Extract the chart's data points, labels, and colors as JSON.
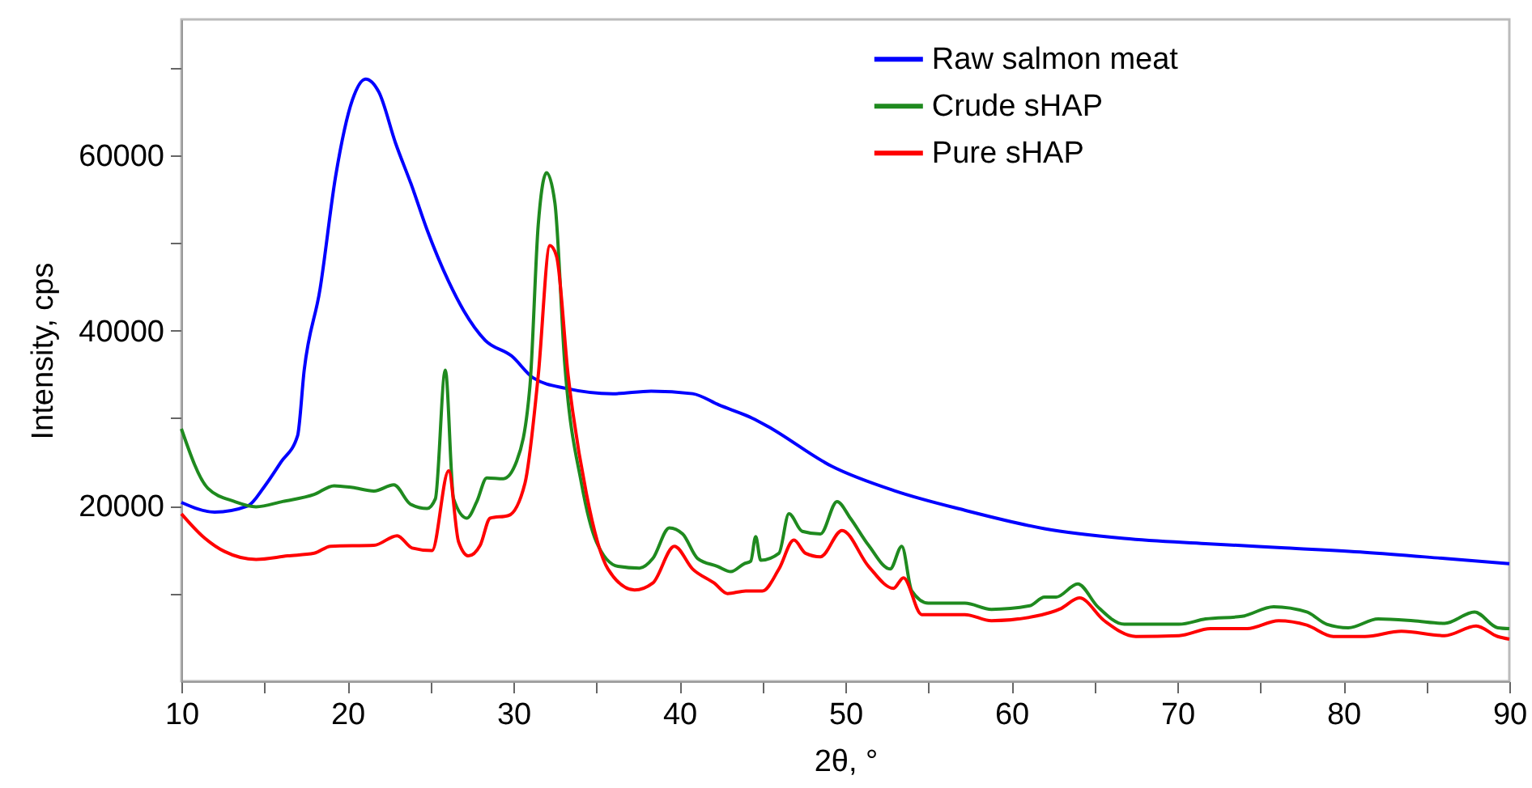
{
  "chart_data": {
    "type": "line",
    "xlabel": "2θ, °",
    "ylabel": "Intensity, cps",
    "xlim": [
      10,
      90
    ],
    "ylim": [
      0,
      75500
    ],
    "xticks": [
      10,
      {
        "value": 15,
        "label": null
      },
      20,
      {
        "value": 25,
        "label": null
      },
      30,
      {
        "value": 35,
        "label": null
      },
      40,
      {
        "value": 45,
        "label": null
      },
      50,
      {
        "value": 55,
        "label": null
      },
      60,
      {
        "value": 65,
        "label": null
      },
      70,
      {
        "value": 75,
        "label": null
      },
      80,
      {
        "value": 85,
        "label": null
      },
      90
    ],
    "yticks": [
      {
        "value": 10000,
        "label": null
      },
      20000,
      {
        "value": 30000,
        "label": null
      },
      40000,
      {
        "value": 50000,
        "label": null
      },
      60000,
      {
        "value": 70000,
        "label": null
      }
    ],
    "grid": false,
    "legend": "top right",
    "line_style": "solid",
    "series": [
      {
        "name": "Raw salmon meat",
        "color": "#0000ff",
        "x": [
          10,
          12,
          14,
          15,
          16,
          17,
          17.4,
          18.35,
          19.3,
          20.3,
          21.1,
          21.9,
          22.9,
          23.9,
          24.8,
          26.1,
          27.0,
          28.3,
          29.9,
          31.2,
          33.2,
          36.0,
          38.3,
          40.8,
          42.4,
          44.4,
          45.3,
          49.2,
          53.0,
          57.2,
          62.0,
          66.8,
          71.7,
          76.5,
          81.3,
          86.1,
          90
        ],
        "values": [
          20400,
          19300,
          20000,
          22200,
          25000,
          28000,
          35500,
          44700,
          57700,
          66300,
          68700,
          67200,
          61400,
          56400,
          51500,
          45600,
          42300,
          38900,
          37100,
          34600,
          33400,
          32800,
          33100,
          32800,
          31500,
          30000,
          29100,
          24500,
          21700,
          19500,
          17400,
          16300,
          15700,
          15200,
          14700,
          14000,
          13400
        ]
      },
      {
        "name": "Crude sHAP",
        "color": "#1f8a1f",
        "x": [
          10,
          11.6,
          13.2,
          14.5,
          16.1,
          18.0,
          19.2,
          20.3,
          21.6,
          22.8,
          23.8,
          24.8,
          25.3,
          25.9,
          26.4,
          27.2,
          27.8,
          28.4,
          29.4,
          30.2,
          31.0,
          31.5,
          32.0,
          32.5,
          33.1,
          34.1,
          35.0,
          36.3,
          37.6,
          38.4,
          39.4,
          40.2,
          41.1,
          42.3,
          43.1,
          43.9,
          44.3,
          44.6,
          44.9,
          46.0,
          46.6,
          47.4,
          48.5,
          49.5,
          50.3,
          51.4,
          52.7,
          53.4,
          54.0,
          55.0,
          57.2,
          58.8,
          61.1,
          62.0,
          62.7,
          64.0,
          65.2,
          66.8,
          70.1,
          71.7,
          73.9,
          75.8,
          77.8,
          79.0,
          80.3,
          82.1,
          84.2,
          86.1,
          87.9,
          89.3,
          90
        ],
        "values": [
          28800,
          22000,
          20500,
          19900,
          20500,
          21300,
          22300,
          22100,
          21700,
          22400,
          20200,
          19700,
          20800,
          35500,
          20800,
          18600,
          20500,
          23200,
          23100,
          25100,
          33700,
          52100,
          58000,
          54600,
          36100,
          22600,
          15900,
          13100,
          12900,
          14000,
          17500,
          16800,
          14000,
          13100,
          12500,
          13400,
          13700,
          16500,
          13800,
          14600,
          19100,
          17100,
          16800,
          20500,
          18600,
          15500,
          12800,
          15400,
          10300,
          8900,
          8900,
          8200,
          8600,
          9600,
          9600,
          11100,
          8500,
          6500,
          6500,
          7100,
          7400,
          8500,
          7900,
          6500,
          6100,
          7100,
          6900,
          6600,
          7900,
          6100,
          6000
        ]
      },
      {
        "name": "Pure sHAP",
        "color": "#ff0000",
        "x": [
          10,
          11.3,
          12.6,
          14.5,
          16.4,
          18.0,
          19.0,
          21.6,
          23.0,
          23.9,
          25.1,
          26.1,
          26.7,
          27.3,
          28.0,
          28.6,
          29.7,
          30.7,
          31.5,
          32.2,
          32.6,
          33.3,
          34.4,
          35.7,
          37.3,
          38.4,
          39.7,
          40.8,
          42.1,
          42.9,
          44.0,
          45.0,
          46.0,
          46.9,
          47.6,
          48.5,
          49.8,
          51.4,
          52.9,
          53.5,
          54.6,
          57.2,
          58.8,
          61.4,
          63.0,
          64.1,
          65.6,
          67.5,
          70.1,
          72.0,
          74.2,
          76.1,
          77.8,
          79.4,
          81.3,
          83.5,
          86.1,
          88.0,
          89.3,
          90
        ],
        "values": [
          19100,
          16500,
          14800,
          13900,
          14300,
          14600,
          15400,
          15500,
          16600,
          15200,
          14900,
          24000,
          15900,
          14300,
          15500,
          18600,
          18900,
          22600,
          34900,
          49700,
          48500,
          34900,
          21400,
          12800,
          10400,
          11200,
          15400,
          12800,
          11200,
          10000,
          10300,
          10300,
          12800,
          16100,
          14600,
          14200,
          17200,
          13100,
          10600,
          11800,
          7600,
          7600,
          6900,
          7400,
          8300,
          9500,
          6900,
          5100,
          5200,
          6000,
          6000,
          6900,
          6400,
          5100,
          5100,
          5700,
          5200,
          6300,
          5100,
          4800
        ]
      }
    ]
  }
}
